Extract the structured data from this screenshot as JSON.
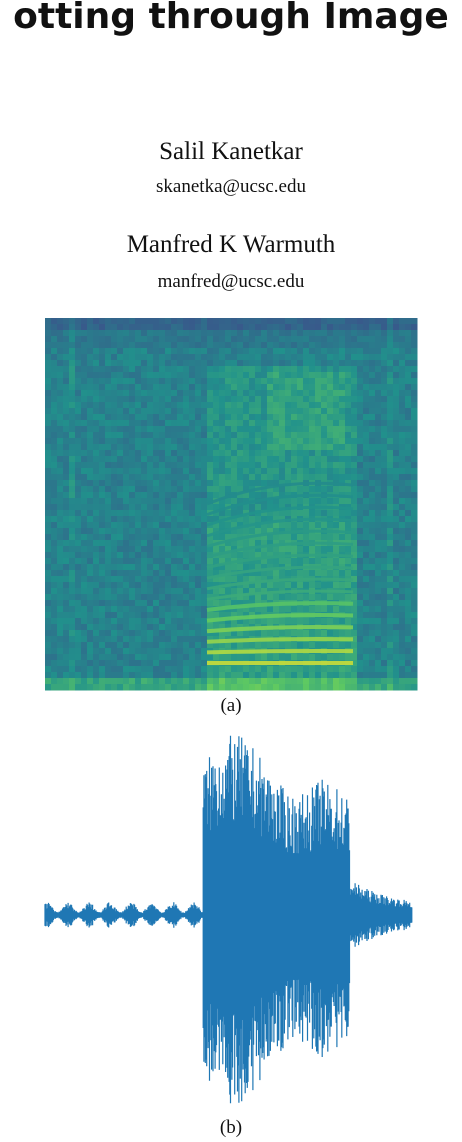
{
  "header": {
    "title": "otting through Image"
  },
  "authors": [
    {
      "name": "Salil Kanetkar",
      "email": "skanetka@ucsc.edu"
    },
    {
      "name": "Manfred K Warmuth",
      "email": "manfred@ucsc.edu"
    }
  ],
  "figures": [
    {
      "caption": "(a)"
    },
    {
      "caption": "(b)"
    }
  ]
}
